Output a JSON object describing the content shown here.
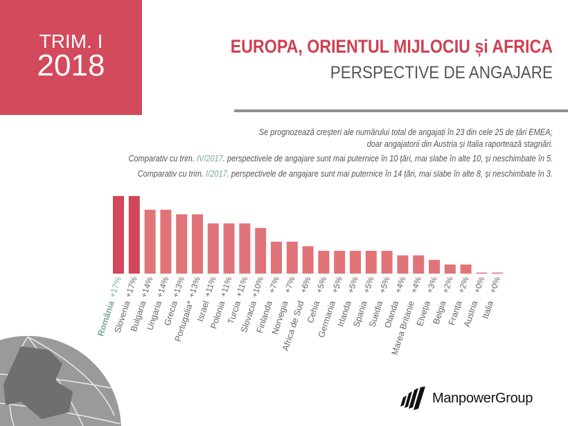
{
  "badge": {
    "line1": "TRIM. I",
    "line2": "2018"
  },
  "header": {
    "title": "EUROPA, ORIENTUL MIJLOCIU și AFRICA",
    "subtitle": "PERSPECTIVE DE ANGAJARE"
  },
  "notes": {
    "line1": "Se prognozează creșteri ale numărului total de angajați în 23 din cele 25 de țări EMEA;",
    "line2": "doar angajatorii din Austria și Italia raportează stagnări.",
    "line3_pre": "Comparativ cu trim. ",
    "line3_hl": "IV/2017",
    "line3_post": ". perspectivele de angajare sunt mai puternice în 10 țări, mai slabe în alte 10, și neschimbate în 5.",
    "line4_pre": "Comparativ cu trim. ",
    "line4_hl": "I/2017",
    "line4_post": ". perspectivele de angajare sunt mai puternice în 14 țări, mai slabe în alte 8, și neschimbate în 3."
  },
  "colors": {
    "accent": "#d24a5c",
    "top_bar": "#d4465a",
    "bar": "#e07479",
    "highlight": "#7aa89a",
    "label": "#666666"
  },
  "chart_data": {
    "type": "bar",
    "categories": [
      "România",
      "Slovenia",
      "Bulgaria",
      "Ungaria",
      "Grecia",
      "Portugalia*",
      "Israel",
      "Polonia",
      "Turcia",
      "Slovacia",
      "Finlanda",
      "Norvegia",
      "Africa de Sud",
      "Cehia",
      "Germania",
      "Irlanda",
      "Spania",
      "Suedia",
      "Olanda",
      "Marea Britanie",
      "Elveția",
      "Belgia",
      "Franța",
      "Austria",
      "Italia"
    ],
    "values": [
      17,
      17,
      14,
      14,
      13,
      13,
      11,
      11,
      11,
      10,
      7,
      7,
      6,
      5,
      5,
      5,
      5,
      5,
      4,
      4,
      3,
      2,
      2,
      0,
      0
    ],
    "value_labels": [
      "+17%",
      "+17%",
      "+14%",
      "+14%",
      "+13%",
      "+13%",
      "+11%",
      "+11%",
      "+11%",
      "+10%",
      "+7%",
      "+7%",
      "+6%",
      "+5%",
      "+5%",
      "+5%",
      "+5%",
      "+5%",
      "+4%",
      "+4%",
      "+3%",
      "+2%",
      "+2%",
      "+0%",
      "+0%"
    ],
    "highlighted": "România",
    "ylim": [
      0,
      17
    ],
    "xlabel": "",
    "ylabel": "",
    "grid": false
  },
  "logo": {
    "text": "ManpowerGroup"
  }
}
